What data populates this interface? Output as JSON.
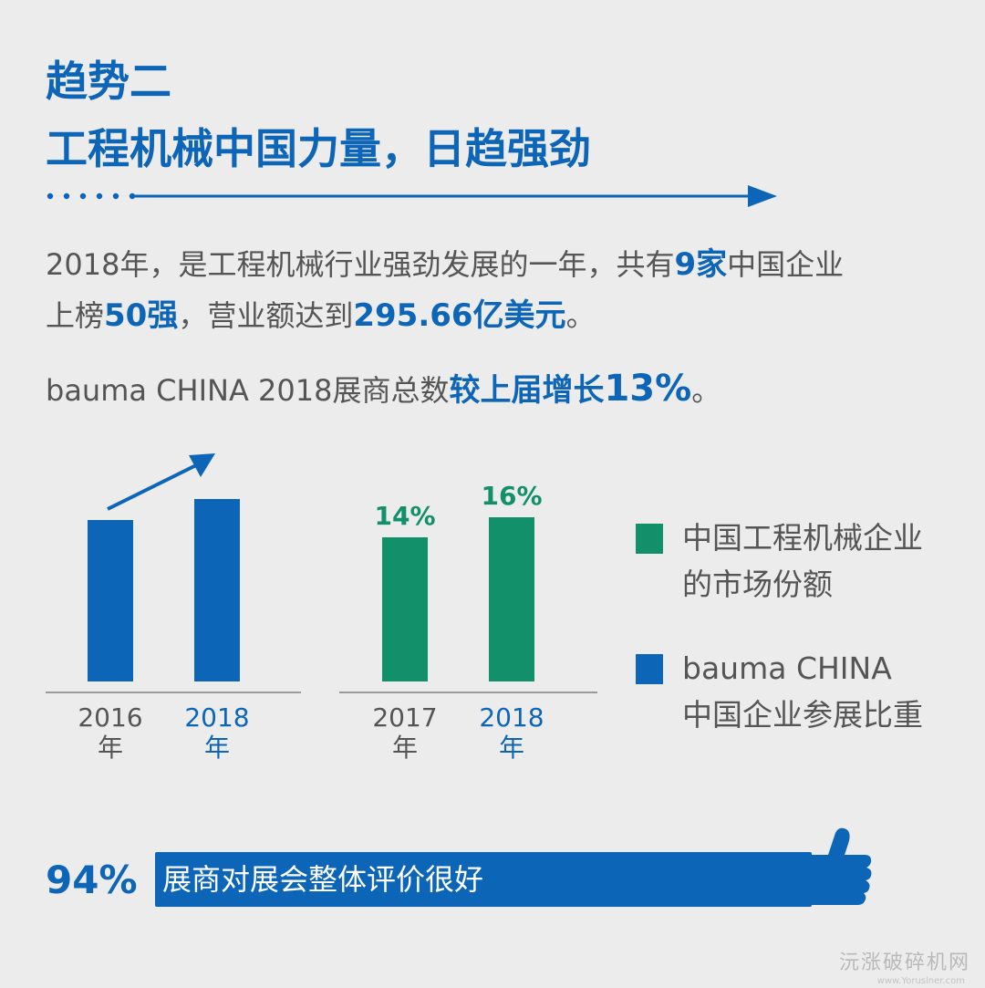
{
  "heading": {
    "line1": "趋势二",
    "line2": "工程机械中国力量，日趋强劲"
  },
  "intro": {
    "line1_pre": "2018年，是工程机械行业强劲发展的一年，共有",
    "line1_hl": "9家",
    "line1_post": "中国企业",
    "line2_pre": "上榜",
    "line2_hl1": "50强",
    "line2_mid": "，营业额达到",
    "line2_hl2": "295.66亿美元",
    "line2_post": "。"
  },
  "exhibitor": {
    "pre": "bauma CHINA 2018展商总数",
    "hl": "较上届增长",
    "hl_big": "13%",
    "post": "。"
  },
  "chart_data": [
    {
      "type": "bar",
      "categories": [
        "2016年",
        "2018年"
      ],
      "values": [
        0.68,
        0.77
      ],
      "value_unit": "relative (unlabeled)",
      "trend": "up",
      "color": "#0d65b8",
      "labels": [
        {
          "year": "2016",
          "unit": "年",
          "color": "#555555"
        },
        {
          "year": "2018",
          "unit": "年",
          "color": "#0d65b8"
        }
      ]
    },
    {
      "type": "bar",
      "categories": [
        "2017年",
        "2018年"
      ],
      "values": [
        14,
        16
      ],
      "data_labels": [
        "14%",
        "16%"
      ],
      "color": "#11906a",
      "labels": [
        {
          "year": "2017",
          "unit": "年",
          "color": "#555555"
        },
        {
          "year": "2018",
          "unit": "年",
          "color": "#0d65b8"
        }
      ]
    }
  ],
  "legend": [
    {
      "color": "#11906a",
      "line1": "中国工程机械企业",
      "line2": "的市场份额"
    },
    {
      "color": "#0d65b8",
      "line1": "bauma CHINA",
      "line2": "中国企业参展比重"
    }
  ],
  "footer": {
    "percent": "94%",
    "text": "展商对展会整体评价很好"
  },
  "watermark": {
    "name": "沅涨破碎机网",
    "url": "www.Yoruslner.com"
  },
  "colors": {
    "brand_blue": "#0d65b8",
    "green": "#11906a",
    "text_gray": "#555555",
    "background": "#ececec"
  }
}
